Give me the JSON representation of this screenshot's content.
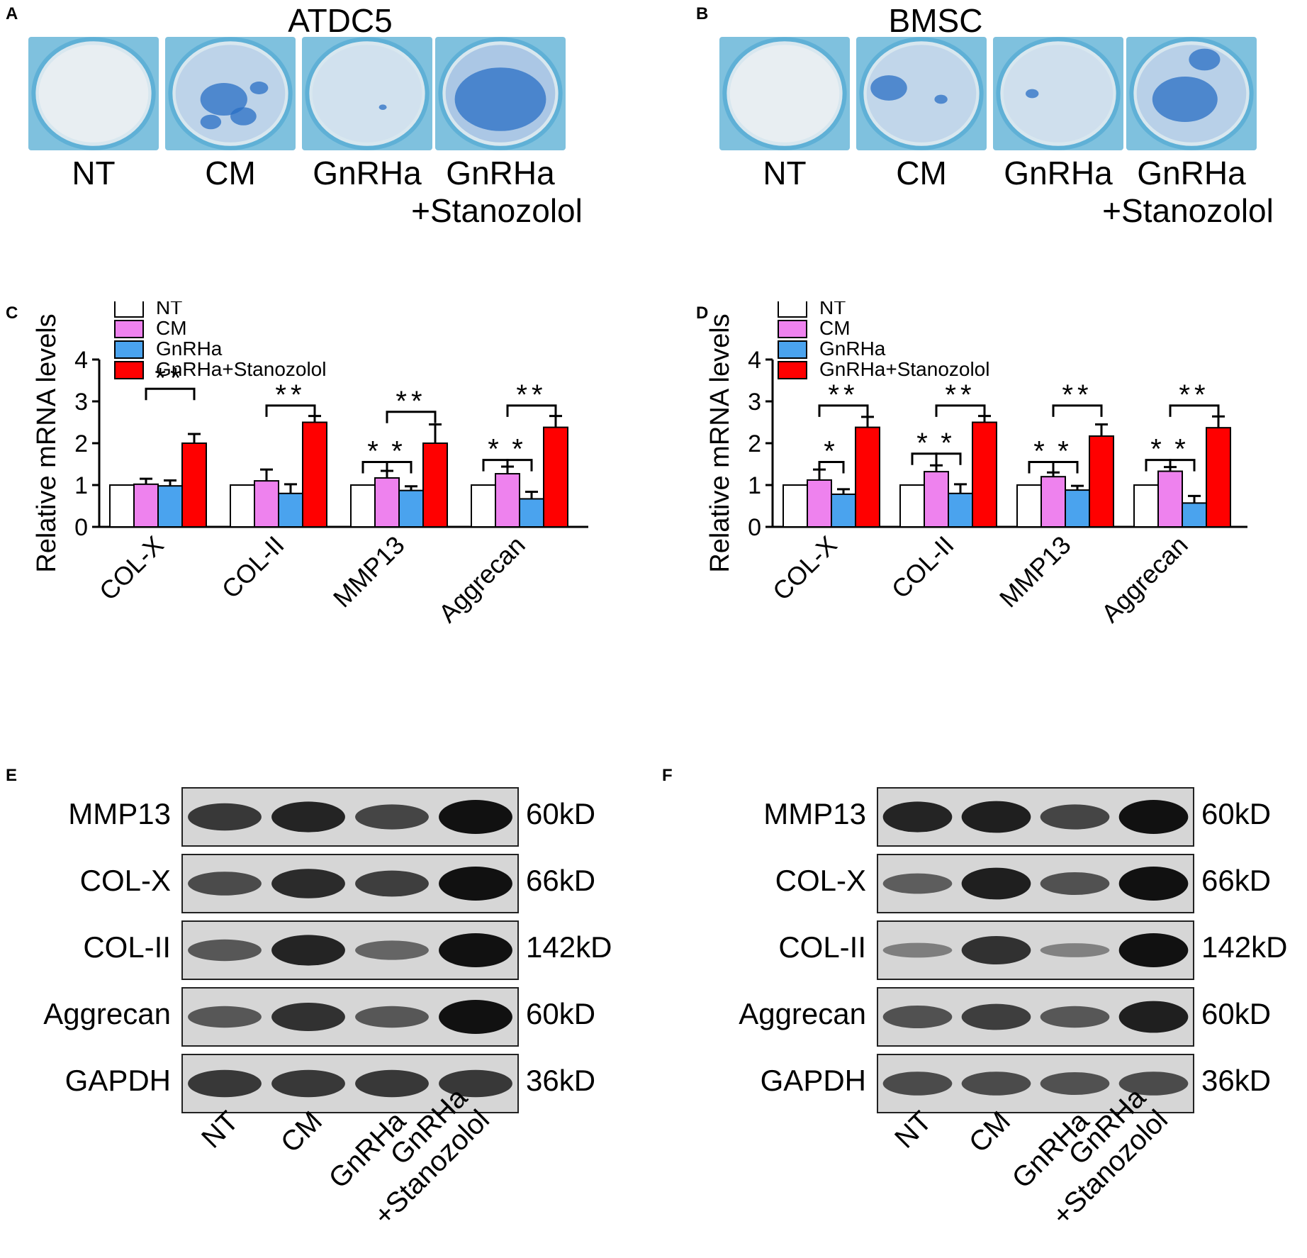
{
  "panels": {
    "A": {
      "letter": "A",
      "title": "ATDC5",
      "wells": [
        "NT",
        "CM",
        "GnRHa",
        "GnRHa\n+Stanozolol"
      ]
    },
    "B": {
      "letter": "B",
      "title": "BMSC",
      "wells": [
        "NT",
        "CM",
        "GnRHa",
        "GnRHa\n+Stanozolol"
      ]
    },
    "C": {
      "letter": "C"
    },
    "D": {
      "letter": "D"
    },
    "E": {
      "letter": "E",
      "rows": [
        {
          "protein": "MMP13",
          "kd": "60kD"
        },
        {
          "protein": "COL-X",
          "kd": "66kD"
        },
        {
          "protein": "COL-II",
          "kd": "142kD"
        },
        {
          "protein": "Aggrecan",
          "kd": "60kD"
        },
        {
          "protein": "GAPDH",
          "kd": "36kD"
        }
      ],
      "lanes": [
        "NT",
        "CM",
        "GnRHa",
        "GnRHa\n+Stanozolol"
      ]
    },
    "F": {
      "letter": "F",
      "rows": [
        {
          "protein": "MMP13",
          "kd": "60kD"
        },
        {
          "protein": "COL-X",
          "kd": "66kD"
        },
        {
          "protein": "COL-II",
          "kd": "142kD"
        },
        {
          "protein": "Aggrecan",
          "kd": "60kD"
        },
        {
          "protein": "GAPDH",
          "kd": "36kD"
        }
      ],
      "lanes": [
        "NT",
        "CM",
        "GnRHa",
        "GnRHa\n+Stanozolol"
      ]
    }
  },
  "chart_data": [
    {
      "panel": "C",
      "type": "bar",
      "ylabel": "Relative mRNA levels",
      "ylim": [
        0,
        4
      ],
      "yticks": [
        0,
        1,
        2,
        3,
        4
      ],
      "categories": [
        "COL-X",
        "COL-II",
        "MMP13",
        "Aggrecan"
      ],
      "legend_position": "top-left",
      "series": [
        {
          "name": "NT",
          "color": "#ffffff",
          "values": [
            1.0,
            1.0,
            1.0,
            1.0
          ],
          "errors": [
            0,
            0,
            0,
            0
          ]
        },
        {
          "name": "CM",
          "color": "#ee82ee",
          "values": [
            1.02,
            1.1,
            1.17,
            1.27
          ],
          "errors": [
            0.13,
            0.27,
            0.17,
            0.17
          ]
        },
        {
          "name": "GnRHa",
          "color": "#4aa3ee",
          "values": [
            0.98,
            0.8,
            0.87,
            0.67
          ],
          "errors": [
            0.13,
            0.22,
            0.1,
            0.17
          ]
        },
        {
          "name": "GnRHa+Stanozolol",
          "color": "#ff0000",
          "values": [
            2.0,
            2.5,
            2.0,
            2.38
          ],
          "errors": [
            0.22,
            0.15,
            0.45,
            0.27
          ]
        }
      ],
      "significance": [
        {
          "category": "COL-X",
          "from": "CM",
          "to": "GnRHa+Stanozolol",
          "label": "**",
          "level": 3.3
        },
        {
          "category": "COL-II",
          "from": "CM",
          "to": "GnRHa+Stanozolol",
          "label": "**",
          "level": 2.9
        },
        {
          "category": "MMP13",
          "from": "NT",
          "to": "CM",
          "label": "*",
          "level": 1.55
        },
        {
          "category": "MMP13",
          "from": "CM",
          "to": "GnRHa",
          "label": "*",
          "level": 1.55
        },
        {
          "category": "MMP13",
          "from": "CM",
          "to": "GnRHa+Stanozolol",
          "label": "**",
          "level": 2.75
        },
        {
          "category": "Aggrecan",
          "from": "NT",
          "to": "CM",
          "label": "*",
          "level": 1.6
        },
        {
          "category": "Aggrecan",
          "from": "CM",
          "to": "GnRHa",
          "label": "*",
          "level": 1.6
        },
        {
          "category": "Aggrecan",
          "from": "CM",
          "to": "GnRHa+Stanozolol",
          "label": "**",
          "level": 2.9
        }
      ]
    },
    {
      "panel": "D",
      "type": "bar",
      "ylabel": "Relative mRNA levels",
      "ylim": [
        0,
        4
      ],
      "yticks": [
        0,
        1,
        2,
        3,
        4
      ],
      "categories": [
        "COL-X",
        "COL-II",
        "MMP13",
        "Aggrecan"
      ],
      "legend_position": "top-left",
      "series": [
        {
          "name": "NT",
          "color": "#ffffff",
          "values": [
            1.0,
            1.0,
            1.0,
            1.0
          ],
          "errors": [
            0,
            0,
            0,
            0
          ]
        },
        {
          "name": "CM",
          "color": "#ee82ee",
          "values": [
            1.12,
            1.32,
            1.2,
            1.33
          ],
          "errors": [
            0.25,
            0.15,
            0.1,
            0.1
          ]
        },
        {
          "name": "GnRHa",
          "color": "#4aa3ee",
          "values": [
            0.78,
            0.8,
            0.88,
            0.57
          ],
          "errors": [
            0.12,
            0.22,
            0.1,
            0.17
          ]
        },
        {
          "name": "GnRHa+Stanozolol",
          "color": "#ff0000",
          "values": [
            2.38,
            2.5,
            2.17,
            2.37
          ],
          "errors": [
            0.25,
            0.15,
            0.28,
            0.27
          ]
        }
      ],
      "significance": [
        {
          "category": "COL-X",
          "from": "CM",
          "to": "GnRHa+Stanozolol",
          "label": "**",
          "level": 2.9
        },
        {
          "category": "COL-X",
          "from": "CM",
          "to": "GnRHa",
          "label": "*",
          "level": 1.55
        },
        {
          "category": "COL-II",
          "from": "NT",
          "to": "CM",
          "label": "*",
          "level": 1.75
        },
        {
          "category": "COL-II",
          "from": "CM",
          "to": "GnRHa",
          "label": "*",
          "level": 1.75
        },
        {
          "category": "COL-II",
          "from": "CM",
          "to": "GnRHa+Stanozolol",
          "label": "**",
          "level": 2.9
        },
        {
          "category": "MMP13",
          "from": "NT",
          "to": "CM",
          "label": "*",
          "level": 1.55
        },
        {
          "category": "MMP13",
          "from": "CM",
          "to": "GnRHa",
          "label": "*",
          "level": 1.55
        },
        {
          "category": "MMP13",
          "from": "CM",
          "to": "GnRHa+Stanozolol",
          "label": "**",
          "level": 2.9
        },
        {
          "category": "Aggrecan",
          "from": "NT",
          "to": "CM",
          "label": "*",
          "level": 1.6
        },
        {
          "category": "Aggrecan",
          "from": "CM",
          "to": "GnRHa",
          "label": "*",
          "level": 1.6
        },
        {
          "category": "Aggrecan",
          "from": "CM",
          "to": "GnRHa+Stanozolol",
          "label": "**",
          "level": 2.9
        }
      ]
    }
  ]
}
